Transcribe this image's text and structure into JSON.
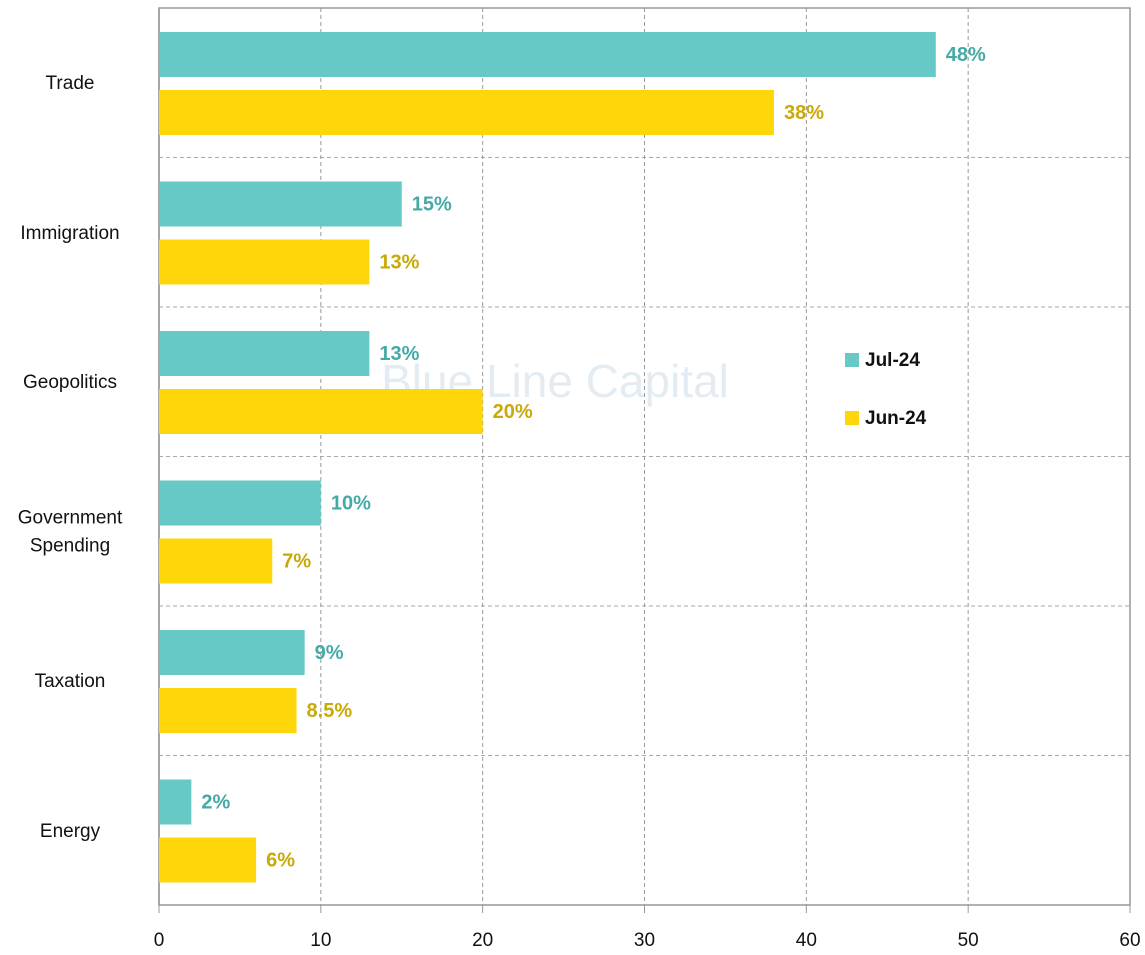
{
  "chart_data": {
    "type": "barh",
    "watermark": "Blue Line Capital",
    "categories": [
      "Trade",
      "Immigration",
      "Geopolitics",
      "Government Spending",
      "Taxation",
      "Energy"
    ],
    "series": [
      {
        "name": "Jul-24",
        "color": "#66c9c6",
        "label_color": "#45aaa6",
        "values": [
          48,
          15,
          13,
          10,
          9,
          2
        ],
        "value_labels": [
          "48%",
          "15%",
          "13%",
          "10%",
          "9%",
          "2%"
        ]
      },
      {
        "name": "Jun-24",
        "color": "#ffd60a",
        "label_color": "#c9a80a",
        "values": [
          38,
          13,
          20,
          7,
          8.5,
          6
        ],
        "value_labels": [
          "38%",
          "13%",
          "20%",
          "7%",
          "8.5%",
          "6%"
        ]
      }
    ],
    "xlim": [
      0,
      60
    ],
    "xticks": [
      0,
      10,
      20,
      30,
      40,
      50,
      60
    ],
    "grid": true
  }
}
